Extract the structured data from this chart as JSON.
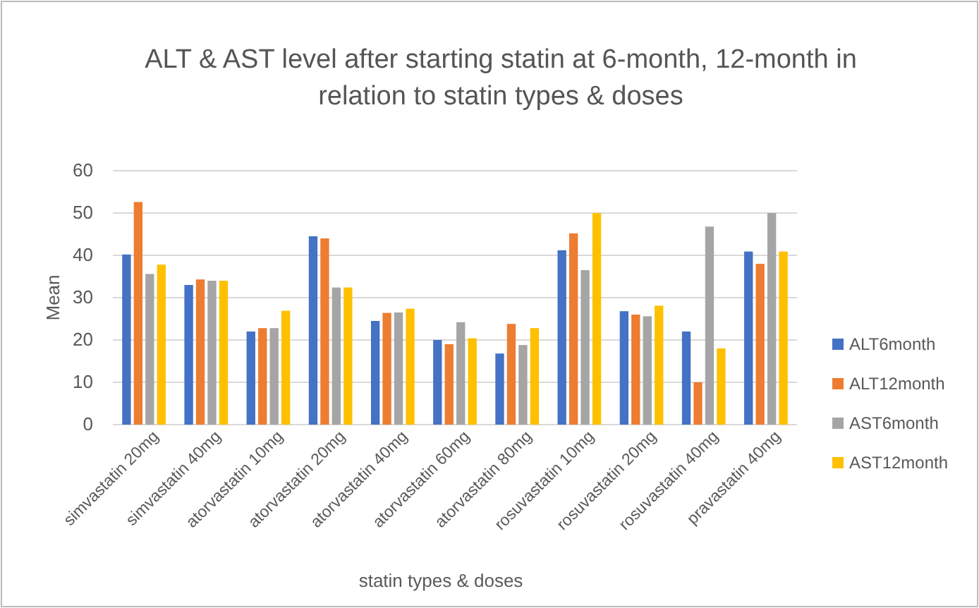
{
  "chart_data": {
    "type": "bar",
    "title": "ALT & AST level after starting statin at 6-month, 12-month in relation to statin types & doses",
    "xlabel": "statin types & doses",
    "ylabel": "Mean",
    "categories": [
      "simvastatin 20mg",
      "simvastatin 40mg",
      "atorvastatin 10mg",
      "atorvastatin 20mg",
      "atorvastatin 40mg",
      "atorvastatin 60mg",
      "atorvastatin 80mg",
      "rosuvastatin 10mg",
      "rosuvastatin 20mg",
      "rosuvastatin 40mg",
      "pravastatin 40mg"
    ],
    "series": [
      {
        "name": "ALT6month",
        "color": "#4472c4",
        "values": [
          40.2,
          33,
          22,
          44.5,
          24.5,
          20,
          16.8,
          41.2,
          26.8,
          22,
          40.9
        ]
      },
      {
        "name": "ALT12month",
        "color": "#ed7d31",
        "values": [
          52.6,
          34.3,
          22.8,
          44,
          26.4,
          19,
          23.8,
          45.2,
          26,
          10,
          38
        ]
      },
      {
        "name": "AST6month",
        "color": "#a5a5a5",
        "values": [
          35.6,
          34,
          22.8,
          32.4,
          26.5,
          24.2,
          18.8,
          36.5,
          25.6,
          46.8,
          50
        ]
      },
      {
        "name": "AST12month",
        "color": "#ffc000",
        "values": [
          37.8,
          34,
          26.9,
          32.4,
          27.4,
          20.4,
          22.8,
          50,
          28.1,
          18,
          40.9
        ]
      }
    ],
    "ylim": [
      0,
      60
    ],
    "yticks": [
      0,
      10,
      20,
      30,
      40,
      50,
      60
    ],
    "grid": "y",
    "legend": "right"
  }
}
